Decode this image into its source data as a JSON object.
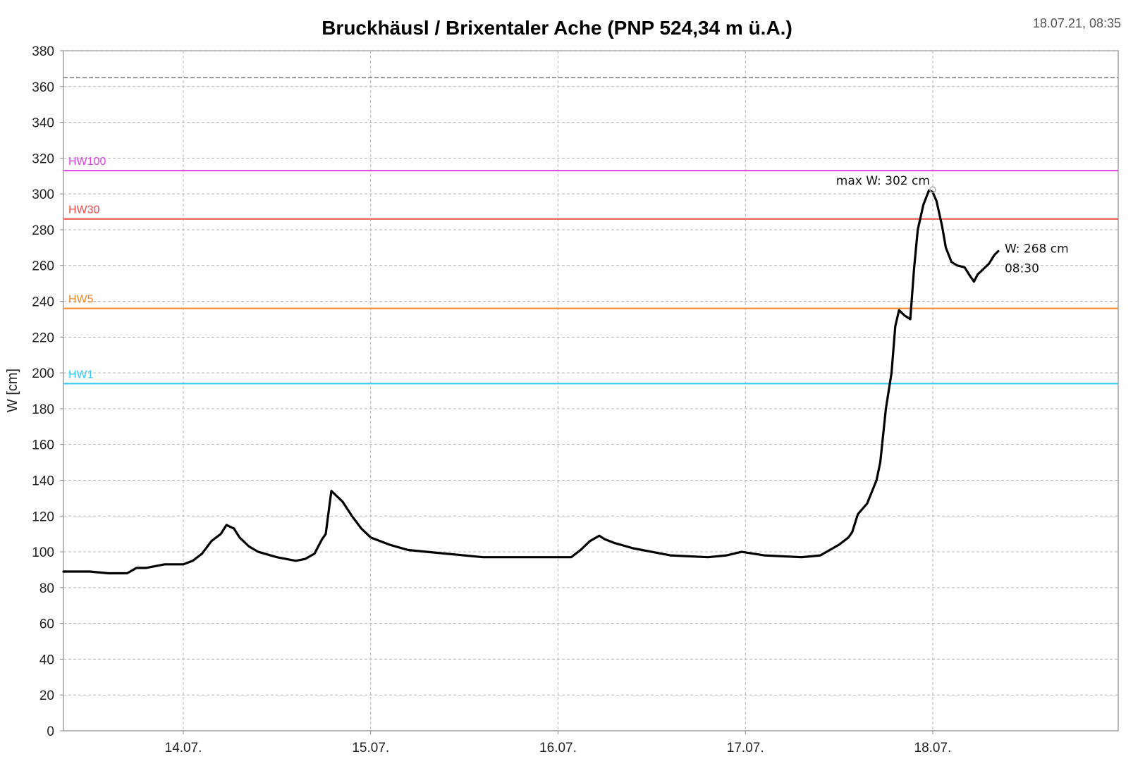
{
  "chart_data": {
    "type": "line",
    "title": "Bruckhäusl / Brixentaler Ache (PNP 524,34 m ü.A.)",
    "timestamp": "18.07.21, 08:35",
    "ylabel": "W [cm]",
    "xlabel": "",
    "ylim": [
      0,
      380
    ],
    "yticks": [
      0,
      20,
      40,
      60,
      80,
      100,
      120,
      140,
      160,
      180,
      200,
      220,
      240,
      260,
      280,
      300,
      320,
      340,
      360,
      380
    ],
    "xlim": [
      13.36,
      18.99
    ],
    "xticks": [
      {
        "value": 14,
        "label": "14.07."
      },
      {
        "value": 15,
        "label": "15.07."
      },
      {
        "value": 16,
        "label": "16.07."
      },
      {
        "value": 17,
        "label": "17.07."
      },
      {
        "value": 18,
        "label": "18.07."
      }
    ],
    "grid": true,
    "series": [
      {
        "name": "",
        "color": "#000000",
        "x": [
          13.36,
          13.5,
          13.6,
          13.7,
          13.75,
          13.8,
          13.9,
          13.95,
          14.0,
          14.05,
          14.1,
          14.15,
          14.2,
          14.23,
          14.27,
          14.3,
          14.35,
          14.4,
          14.5,
          14.6,
          14.65,
          14.7,
          14.74,
          14.76,
          14.78,
          14.79,
          14.85,
          14.9,
          14.95,
          15.0,
          15.1,
          15.2,
          15.4,
          15.6,
          15.8,
          16.0,
          16.07,
          16.12,
          16.17,
          16.22,
          16.25,
          16.3,
          16.4,
          16.5,
          16.6,
          16.8,
          16.9,
          16.98,
          17.1,
          17.3,
          17.4,
          17.5,
          17.55,
          17.57,
          17.6,
          17.65,
          17.7,
          17.72,
          17.75,
          17.78,
          17.8,
          17.82,
          17.85,
          17.88,
          17.9,
          17.92,
          17.95,
          17.98,
          18.0,
          18.02,
          18.05,
          18.07,
          18.1,
          18.13,
          18.17,
          18.2,
          18.22,
          18.24,
          18.27,
          18.3,
          18.33,
          18.35
        ],
        "values": [
          89,
          89,
          88,
          88,
          91,
          91,
          93,
          93,
          93,
          95,
          99,
          106,
          110,
          115,
          113,
          108,
          103,
          100,
          97,
          95,
          96,
          99,
          107,
          110,
          126,
          134,
          128,
          120,
          113,
          108,
          104,
          101,
          99,
          97,
          97,
          97,
          97,
          101,
          106,
          109,
          107,
          105,
          102,
          100,
          98,
          97,
          98,
          100,
          98,
          97,
          98,
          104,
          108,
          111,
          121,
          127,
          140,
          150,
          180,
          200,
          226,
          235,
          232,
          230,
          258,
          280,
          294,
          302,
          301,
          296,
          282,
          270,
          262,
          260,
          259,
          254,
          251,
          255,
          258,
          261,
          266,
          268
        ]
      }
    ],
    "reference_lines": [
      {
        "label": "",
        "value": 365,
        "color": "#777777",
        "style": "dashed"
      },
      {
        "label": "HW100",
        "value": 313,
        "color": "#e040e0",
        "style": "solid"
      },
      {
        "label": "HW30",
        "value": 286,
        "color": "#f04a4a",
        "style": "solid"
      },
      {
        "label": "HW5",
        "value": 236,
        "color": "#f0882a",
        "style": "solid"
      },
      {
        "label": "HW1",
        "value": 194,
        "color": "#2ec8f0",
        "style": "solid"
      }
    ],
    "annotations": {
      "max_text": "max W: 302 cm",
      "max_x": 18.0,
      "max_value": 302,
      "current_value_text": "W: 268 cm",
      "current_time_text": "08:30",
      "current_x": 18.35,
      "current_value": 268
    }
  }
}
